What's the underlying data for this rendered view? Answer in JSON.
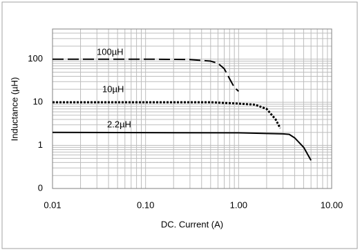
{
  "chart_data": {
    "type": "line",
    "x_label": "DC. Current (A)",
    "y_label": "Inductance (µH)",
    "xlim": [
      0.01,
      10
    ],
    "ylim": [
      0.1,
      500
    ],
    "xticks": [
      0.01,
      {
        "value": 0.1,
        "label": "0.10"
      },
      {
        "value": 1,
        "label": "1.00"
      },
      {
        "value": 10,
        "label": "10.00"
      }
    ],
    "yticks": [
      {
        "value": 0.1,
        "label": "0"
      },
      1,
      10,
      100
    ],
    "x_scale": "log",
    "y_scale": "log",
    "grid": true,
    "minor_grid": true,
    "series": [
      {
        "name": "100µH",
        "color": "#000000",
        "line_style": "dashed",
        "x": [
          0.01,
          0.1,
          0.3,
          0.5,
          0.6,
          0.7,
          0.8,
          0.9,
          1.0
        ],
        "values": [
          100,
          100,
          98,
          90,
          80,
          60,
          35,
          22,
          18
        ]
      },
      {
        "name": "10µH",
        "color": "#000000",
        "line_style": "dotted",
        "x": [
          0.01,
          0.5,
          1.0,
          1.5,
          2.0,
          2.5,
          2.8
        ],
        "values": [
          10,
          10,
          9.3,
          8.8,
          7,
          4,
          2.5
        ]
      },
      {
        "name": "2.2µH",
        "color": "#000000",
        "line_style": "solid",
        "x": [
          0.01,
          1,
          3,
          3.5,
          4,
          5,
          6
        ],
        "values": [
          2.0,
          1.95,
          1.85,
          1.8,
          1.5,
          0.9,
          0.45
        ]
      }
    ]
  }
}
